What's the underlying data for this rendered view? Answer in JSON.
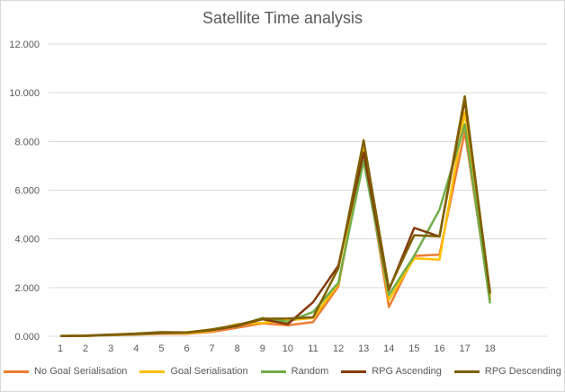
{
  "chart_data": {
    "type": "line",
    "title": "Satellite Time analysis",
    "xlabel": "",
    "ylabel": "",
    "categories": [
      "1",
      "2",
      "3",
      "4",
      "5",
      "6",
      "7",
      "8",
      "9",
      "10",
      "11",
      "12",
      "13",
      "14",
      "15",
      "16",
      "17",
      "18"
    ],
    "ylim": [
      0,
      12000
    ],
    "yticks": [
      0,
      2000,
      4000,
      6000,
      8000,
      10000,
      12000
    ],
    "ytick_labels": [
      "0.000",
      "2.000",
      "4.000",
      "6.000",
      "8.000",
      "10.000",
      "12.000"
    ],
    "grid": true,
    "legend_position": "bottom",
    "series": [
      {
        "name": "No Goal Serialisation",
        "color": "#ED7D31",
        "values": [
          10,
          15,
          40,
          70,
          100,
          100,
          180,
          350,
          530,
          450,
          580,
          2050,
          7600,
          1200,
          3300,
          3350,
          8400,
          1500
        ]
      },
      {
        "name": "Goal Serialisation",
        "color": "#FFC000",
        "values": [
          10,
          20,
          50,
          80,
          120,
          120,
          220,
          500,
          550,
          650,
          750,
          2150,
          7700,
          1500,
          3200,
          3150,
          9200,
          1600
        ]
      },
      {
        "name": "Random",
        "color": "#70AD47",
        "values": [
          10,
          20,
          50,
          90,
          130,
          150,
          250,
          420,
          750,
          600,
          1000,
          2200,
          7200,
          1700,
          3300,
          5200,
          8700,
          1350
        ]
      },
      {
        "name": "RPG Ascending",
        "color": "#843C0C",
        "values": [
          10,
          20,
          60,
          100,
          140,
          150,
          260,
          430,
          700,
          500,
          1400,
          2900,
          7550,
          1900,
          4450,
          4100,
          9700,
          1800
        ]
      },
      {
        "name": "RPG Descending",
        "color": "#7F6000",
        "values": [
          15,
          25,
          70,
          110,
          170,
          160,
          280,
          460,
          720,
          730,
          780,
          2800,
          8050,
          1950,
          4150,
          4100,
          9850,
          1750
        ]
      }
    ]
  }
}
